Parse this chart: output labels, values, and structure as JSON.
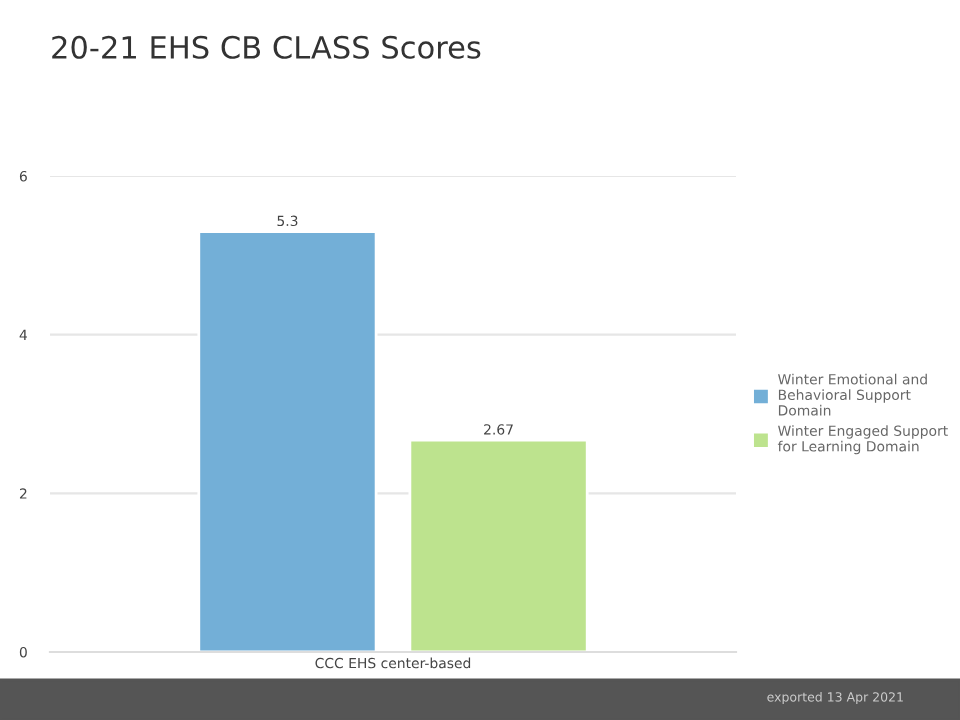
{
  "chart_data": {
    "type": "bar",
    "title": "20-21 EHS CB CLASS Scores",
    "categories": [
      "CCC EHS center-based"
    ],
    "series": [
      {
        "name": "Winter Emotional and Behavioral Support Domain",
        "color": "#73afd7",
        "values": [
          5.3
        ]
      },
      {
        "name": "Winter Engaged Support for Learning Domain",
        "color": "#bde38e",
        "values": [
          2.67
        ]
      }
    ],
    "ylim": [
      0,
      6
    ],
    "yticks": [
      0,
      2,
      4,
      6
    ],
    "grid": "y",
    "legend": "right",
    "data_labels": true,
    "annotations": [
      "exported 13 Apr 2021"
    ]
  }
}
